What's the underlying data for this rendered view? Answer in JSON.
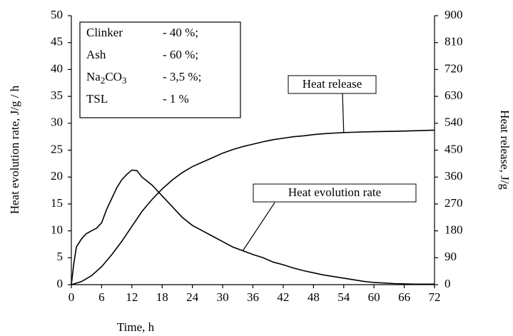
{
  "chart_data": {
    "type": "line",
    "xlabel": "Time, h",
    "ylabel": "Heat evolution rate, J/g / h",
    "y2label": "Heat release, J/g",
    "xlim": [
      0,
      72
    ],
    "xticks": [
      0,
      6,
      12,
      18,
      24,
      30,
      36,
      42,
      48,
      54,
      60,
      66,
      72
    ],
    "ylim": [
      0,
      50
    ],
    "yticks": [
      0,
      5,
      10,
      15,
      20,
      25,
      30,
      35,
      40,
      45,
      50
    ],
    "y2lim": [
      0,
      900
    ],
    "y2ticks": [
      0,
      90,
      180,
      270,
      360,
      450,
      540,
      630,
      720,
      810,
      900
    ],
    "legend_box": [
      {
        "name": "Clinker",
        "value": "- 40 %;"
      },
      {
        "name": "Ash",
        "value": "- 60 %;"
      },
      {
        "name": "Na2CO3",
        "value": "- 3,5 %;"
      },
      {
        "name": "TSL",
        "value": "- 1 %"
      }
    ],
    "series": [
      {
        "name": "Heat evolution rate",
        "color": "#000000",
        "x": [
          0,
          0.5,
          1,
          2,
          3,
          4,
          5,
          6,
          7,
          8,
          9,
          10,
          11,
          12,
          13,
          14,
          16,
          18,
          20,
          22,
          24,
          26,
          28,
          30,
          32,
          34,
          36,
          38,
          40,
          42,
          44,
          46,
          48,
          50,
          52,
          54,
          56,
          58,
          60,
          64,
          68,
          72
        ],
        "values": [
          0,
          4,
          7,
          8.5,
          9.5,
          10,
          10.5,
          11.5,
          14,
          16,
          18,
          19.5,
          20.5,
          21.3,
          21.2,
          20,
          18.5,
          16.5,
          14.5,
          12.5,
          11,
          10,
          9,
          8,
          7,
          6.3,
          5.6,
          5,
          4.2,
          3.7,
          3.1,
          2.6,
          2.2,
          1.8,
          1.5,
          1.2,
          0.9,
          0.6,
          0.4,
          0.2,
          0.1,
          0.1
        ]
      },
      {
        "name": "Heat release",
        "color": "#000000",
        "axis": "y2",
        "x": [
          0,
          2,
          4,
          6,
          8,
          10,
          12,
          14,
          16,
          18,
          20,
          22,
          24,
          26,
          28,
          30,
          32,
          34,
          36,
          38,
          40,
          42,
          44,
          46,
          48,
          50,
          52,
          54,
          56,
          60,
          64,
          68,
          72
        ],
        "values": [
          0,
          10,
          30,
          60,
          100,
          145,
          195,
          245,
          285,
          320,
          350,
          375,
          395,
          410,
          425,
          440,
          452,
          462,
          470,
          478,
          485,
          490,
          495,
          498,
          502,
          505,
          507,
          509,
          510,
          512,
          513,
          515,
          517
        ]
      }
    ]
  }
}
